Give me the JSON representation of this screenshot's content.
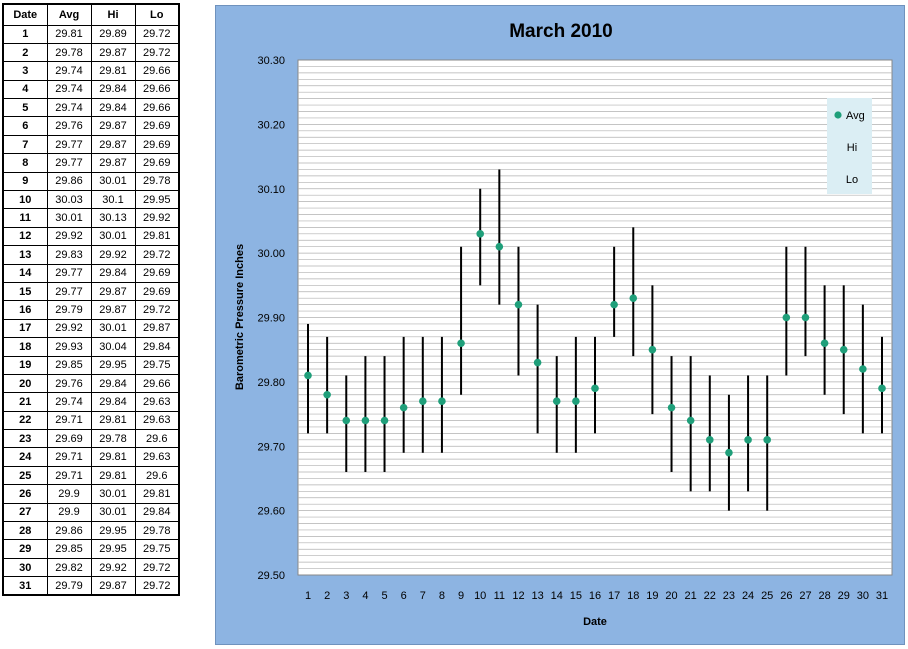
{
  "table": {
    "headers": [
      "Date",
      "Avg",
      "Hi",
      "Lo"
    ],
    "rows": [
      [
        "1",
        "29.81",
        "29.89",
        "29.72"
      ],
      [
        "2",
        "29.78",
        "29.87",
        "29.72"
      ],
      [
        "3",
        "29.74",
        "29.81",
        "29.66"
      ],
      [
        "4",
        "29.74",
        "29.84",
        "29.66"
      ],
      [
        "5",
        "29.74",
        "29.84",
        "29.66"
      ],
      [
        "6",
        "29.76",
        "29.87",
        "29.69"
      ],
      [
        "7",
        "29.77",
        "29.87",
        "29.69"
      ],
      [
        "8",
        "29.77",
        "29.87",
        "29.69"
      ],
      [
        "9",
        "29.86",
        "30.01",
        "29.78"
      ],
      [
        "10",
        "30.03",
        "30.1",
        "29.95"
      ],
      [
        "11",
        "30.01",
        "30.13",
        "29.92"
      ],
      [
        "12",
        "29.92",
        "30.01",
        "29.81"
      ],
      [
        "13",
        "29.83",
        "29.92",
        "29.72"
      ],
      [
        "14",
        "29.77",
        "29.84",
        "29.69"
      ],
      [
        "15",
        "29.77",
        "29.87",
        "29.69"
      ],
      [
        "16",
        "29.79",
        "29.87",
        "29.72"
      ],
      [
        "17",
        "29.92",
        "30.01",
        "29.87"
      ],
      [
        "18",
        "29.93",
        "30.04",
        "29.84"
      ],
      [
        "19",
        "29.85",
        "29.95",
        "29.75"
      ],
      [
        "20",
        "29.76",
        "29.84",
        "29.66"
      ],
      [
        "21",
        "29.74",
        "29.84",
        "29.63"
      ],
      [
        "22",
        "29.71",
        "29.81",
        "29.63"
      ],
      [
        "23",
        "29.69",
        "29.78",
        "29.6"
      ],
      [
        "24",
        "29.71",
        "29.81",
        "29.63"
      ],
      [
        "25",
        "29.71",
        "29.81",
        "29.6"
      ],
      [
        "26",
        "29.9",
        "30.01",
        "29.81"
      ],
      [
        "27",
        "29.9",
        "30.01",
        "29.84"
      ],
      [
        "28",
        "29.86",
        "29.95",
        "29.78"
      ],
      [
        "29",
        "29.85",
        "29.95",
        "29.75"
      ],
      [
        "30",
        "29.82",
        "29.92",
        "29.72"
      ],
      [
        "31",
        "29.79",
        "29.87",
        "29.72"
      ]
    ]
  },
  "chart_data": {
    "type": "scatter",
    "title": "March 2010",
    "xlabel": "Date",
    "ylabel": "Barometric Pressure Inches",
    "ylim": [
      29.5,
      30.3
    ],
    "y_ticks": [
      "29.50",
      "29.60",
      "29.70",
      "29.80",
      "29.90",
      "30.00",
      "30.10",
      "30.20",
      "30.30"
    ],
    "x": [
      1,
      2,
      3,
      4,
      5,
      6,
      7,
      8,
      9,
      10,
      11,
      12,
      13,
      14,
      15,
      16,
      17,
      18,
      19,
      20,
      21,
      22,
      23,
      24,
      25,
      26,
      27,
      28,
      29,
      30,
      31
    ],
    "series": [
      {
        "name": "Avg",
        "values": [
          29.81,
          29.78,
          29.74,
          29.74,
          29.74,
          29.76,
          29.77,
          29.77,
          29.86,
          30.03,
          30.01,
          29.92,
          29.83,
          29.77,
          29.77,
          29.79,
          29.92,
          29.93,
          29.85,
          29.76,
          29.74,
          29.71,
          29.69,
          29.71,
          29.71,
          29.9,
          29.9,
          29.86,
          29.85,
          29.82,
          29.79
        ]
      },
      {
        "name": "Hi",
        "values": [
          29.89,
          29.87,
          29.81,
          29.84,
          29.84,
          29.87,
          29.87,
          29.87,
          30.01,
          30.1,
          30.13,
          30.01,
          29.92,
          29.84,
          29.87,
          29.87,
          30.01,
          30.04,
          29.95,
          29.84,
          29.84,
          29.81,
          29.78,
          29.81,
          29.81,
          30.01,
          30.01,
          29.95,
          29.95,
          29.92,
          29.87
        ]
      },
      {
        "name": "Lo",
        "values": [
          29.72,
          29.72,
          29.66,
          29.66,
          29.66,
          29.69,
          29.69,
          29.69,
          29.78,
          29.95,
          29.92,
          29.81,
          29.72,
          29.69,
          29.69,
          29.72,
          29.87,
          29.84,
          29.75,
          29.66,
          29.63,
          29.63,
          29.6,
          29.63,
          29.6,
          29.81,
          29.84,
          29.78,
          29.75,
          29.72,
          29.72
        ]
      }
    ],
    "grid": true,
    "legend": "top-right",
    "colors": {
      "avg_marker": "#1f9f7a",
      "hilo_bar": "#000000",
      "panel_bg": "#8db4e2",
      "plot_bg": "#ffffff",
      "legend_bg": "#dbeef4"
    }
  }
}
